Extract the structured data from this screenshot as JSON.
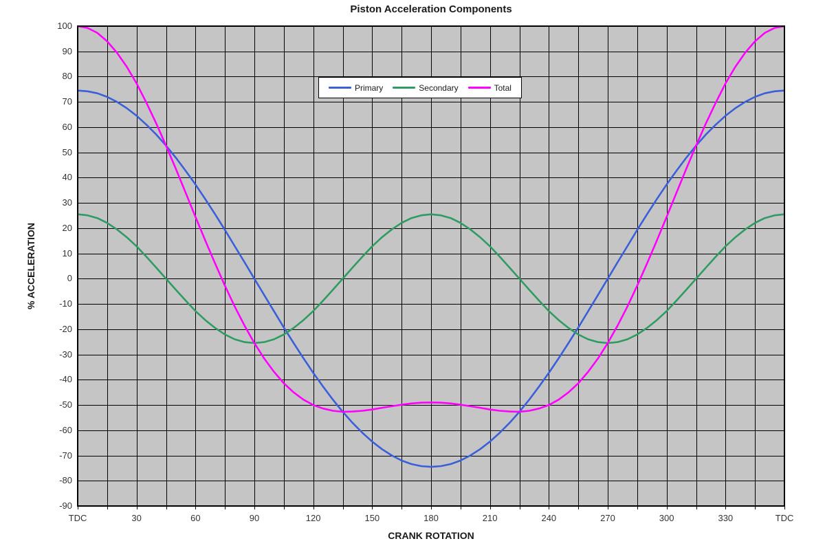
{
  "page": {
    "background": "#ffffff"
  },
  "chart_data": {
    "type": "line",
    "title": "Piston Acceleration Components",
    "xlabel": "CRANK ROTATION",
    "ylabel": "% ACCELERATION",
    "xlim": [
      0,
      360
    ],
    "ylim": [
      -90,
      100
    ],
    "x_gridline_step_deg": 15,
    "x_major_tick_step_deg": 30,
    "y_gridline_step": 10,
    "grid": true,
    "grid_color": "#000000",
    "plot_background": "#C5C5C5",
    "axis_border_color": "#000000",
    "legend_position": "top-center-inside",
    "x_tick_labels": [
      "TDC",
      "30",
      "60",
      "90",
      "120",
      "150",
      "180",
      "210",
      "240",
      "270",
      "300",
      "330",
      "TDC"
    ],
    "y_tick_labels": [
      "100",
      "90",
      "80",
      "70",
      "60",
      "50",
      "40",
      "30",
      "20",
      "10",
      "0",
      "-10",
      "-20",
      "-30",
      "-40",
      "-50",
      "-60",
      "-70",
      "-80",
      "-90"
    ],
    "x": [
      0,
      5,
      10,
      15,
      20,
      25,
      30,
      35,
      40,
      45,
      50,
      55,
      60,
      65,
      70,
      75,
      80,
      85,
      90,
      95,
      100,
      105,
      110,
      115,
      120,
      125,
      130,
      135,
      140,
      145,
      150,
      155,
      160,
      165,
      170,
      175,
      180,
      185,
      190,
      195,
      200,
      205,
      210,
      215,
      220,
      225,
      230,
      235,
      240,
      245,
      250,
      255,
      260,
      265,
      270,
      275,
      280,
      285,
      290,
      295,
      300,
      305,
      310,
      315,
      320,
      325,
      330,
      335,
      340,
      345,
      350,
      355,
      360
    ],
    "series": [
      {
        "name": "Primary",
        "color": "#3A5FD8",
        "values": [
          74.5,
          74.2,
          73.4,
          72.0,
          70.0,
          67.5,
          64.5,
          61.0,
          57.1,
          52.7,
          47.9,
          42.7,
          37.3,
          31.5,
          25.5,
          19.3,
          12.9,
          6.5,
          0.0,
          -6.5,
          -12.9,
          -19.3,
          -25.5,
          -31.5,
          -37.3,
          -42.7,
          -47.9,
          -52.7,
          -57.1,
          -61.0,
          -64.5,
          -67.5,
          -70.0,
          -72.0,
          -73.4,
          -74.2,
          -74.5,
          -74.2,
          -73.4,
          -72.0,
          -70.0,
          -67.5,
          -64.5,
          -61.0,
          -57.1,
          -52.7,
          -47.9,
          -42.7,
          -37.3,
          -31.5,
          -25.5,
          -19.3,
          -12.9,
          -6.5,
          0.0,
          6.5,
          12.9,
          19.3,
          25.5,
          31.5,
          37.3,
          42.7,
          47.9,
          52.7,
          57.1,
          61.0,
          64.5,
          67.5,
          70.0,
          72.0,
          73.4,
          74.2,
          74.5
        ]
      },
      {
        "name": "Secondary",
        "color": "#2E9B62",
        "values": [
          25.5,
          25.1,
          24.0,
          22.1,
          19.5,
          16.4,
          12.8,
          8.7,
          4.4,
          0.0,
          -4.4,
          -8.7,
          -12.8,
          -16.4,
          -19.5,
          -22.1,
          -24.0,
          -25.1,
          -25.5,
          -25.1,
          -24.0,
          -22.1,
          -19.5,
          -16.4,
          -12.8,
          -8.7,
          -4.4,
          0.0,
          4.4,
          8.7,
          12.8,
          16.4,
          19.5,
          22.1,
          24.0,
          25.1,
          25.5,
          25.1,
          24.0,
          22.1,
          19.5,
          16.4,
          12.8,
          8.7,
          4.4,
          0.0,
          -4.4,
          -8.7,
          -12.8,
          -16.4,
          -19.5,
          -22.1,
          -24.0,
          -25.1,
          -25.5,
          -25.1,
          -24.0,
          -22.1,
          -19.5,
          -16.4,
          -12.8,
          -8.7,
          -4.4,
          0.0,
          4.4,
          8.7,
          12.8,
          16.4,
          19.5,
          22.1,
          24.0,
          25.1,
          25.5
        ]
      },
      {
        "name": "Total",
        "color": "#FF00FF",
        "values": [
          100.0,
          99.3,
          97.3,
          94.0,
          89.5,
          83.9,
          77.3,
          69.7,
          61.5,
          52.7,
          43.5,
          34.0,
          24.5,
          15.1,
          6.0,
          -2.8,
          -11.0,
          -18.6,
          -25.5,
          -31.6,
          -36.9,
          -41.4,
          -45.0,
          -47.9,
          -50.0,
          -51.4,
          -52.3,
          -52.7,
          -52.6,
          -52.3,
          -51.8,
          -51.1,
          -50.5,
          -49.9,
          -49.4,
          -49.1,
          -49.0,
          -49.1,
          -49.4,
          -49.9,
          -50.5,
          -51.1,
          -51.8,
          -52.3,
          -52.6,
          -52.7,
          -52.3,
          -51.4,
          -50.0,
          -47.9,
          -45.0,
          -41.4,
          -36.9,
          -31.6,
          -25.5,
          -18.6,
          -11.0,
          -2.8,
          6.0,
          15.1,
          24.5,
          34.0,
          43.5,
          52.7,
          61.5,
          69.7,
          77.3,
          83.9,
          89.5,
          94.0,
          97.3,
          99.3,
          100.0
        ]
      }
    ]
  }
}
